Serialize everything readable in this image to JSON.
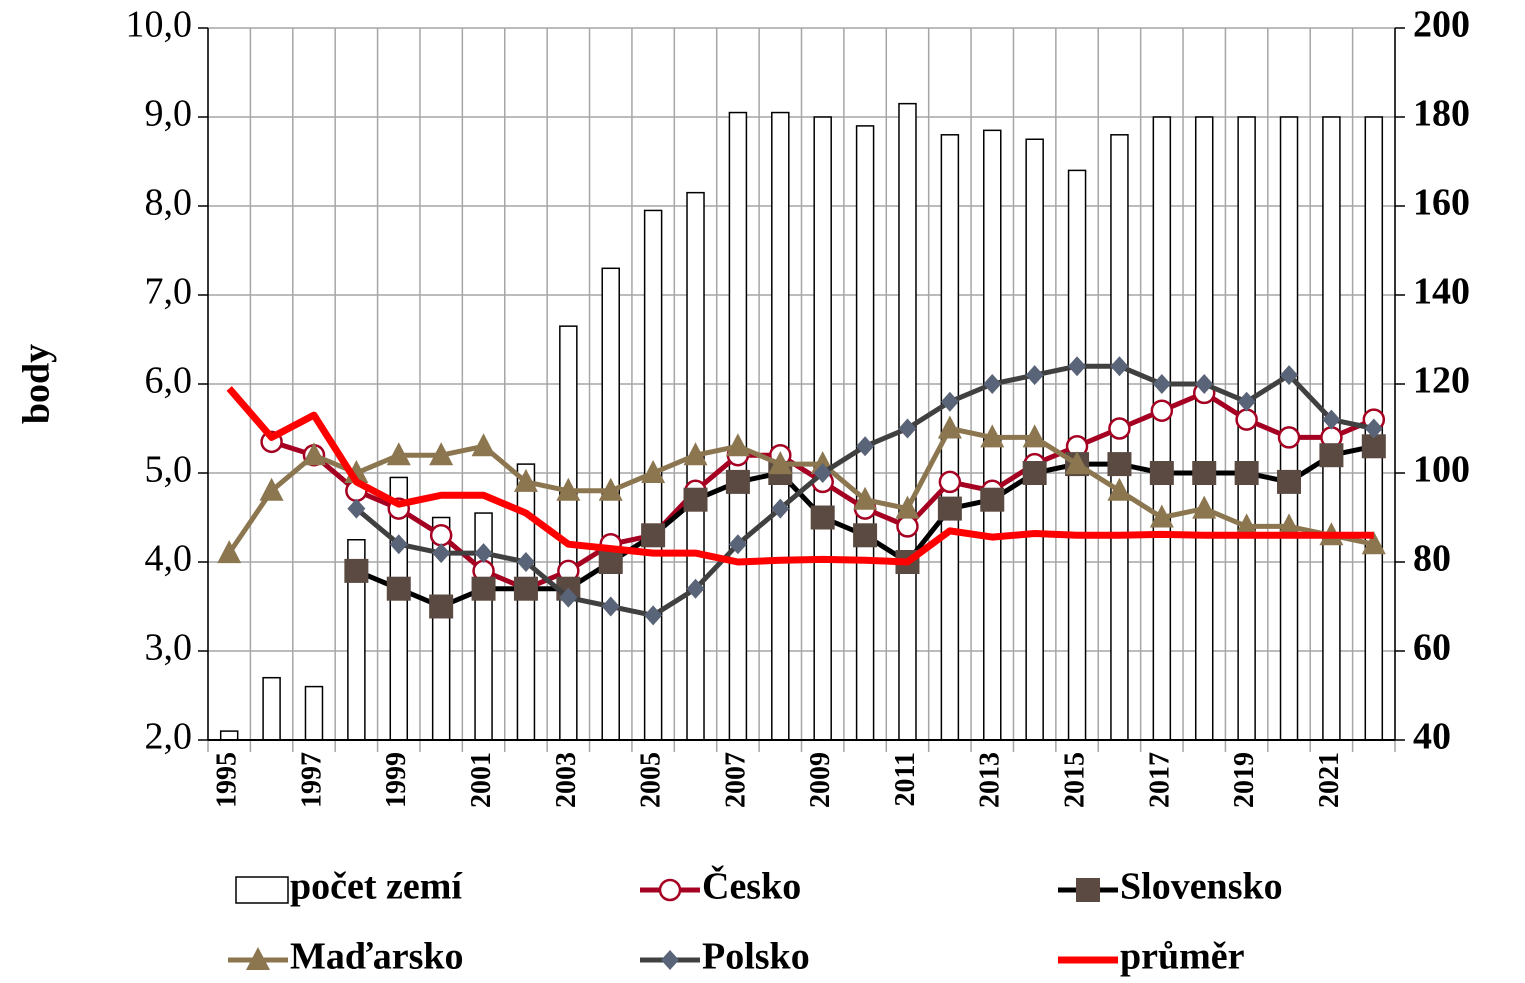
{
  "chart_data": {
    "type": "combo",
    "ylabel": "body",
    "categories": [
      "1995",
      null,
      "1997",
      null,
      "1999",
      null,
      "2001",
      null,
      "2003",
      null,
      "2005",
      null,
      "2007",
      null,
      "2009",
      null,
      "2011",
      null,
      "2013",
      null,
      "2015",
      null,
      "2017",
      null,
      "2019",
      null,
      "2021",
      null
    ],
    "ylim": [
      2,
      10
    ],
    "yticks": [
      {
        "value": 2,
        "label": "2,0"
      },
      {
        "value": 3,
        "label": "3,0"
      },
      {
        "value": 4,
        "label": "4,0"
      },
      {
        "value": 5,
        "label": "5,0"
      },
      {
        "value": 6,
        "label": "6,0"
      },
      {
        "value": 7,
        "label": "7,0"
      },
      {
        "value": 8,
        "label": "8,0"
      },
      {
        "value": 9,
        "label": "9,0"
      },
      {
        "value": 10,
        "label": "10,0"
      }
    ],
    "y2lim": [
      40,
      200
    ],
    "y2ticks": [
      40,
      60,
      80,
      100,
      120,
      140,
      160,
      180,
      200
    ],
    "grid": true,
    "legend": "bottom",
    "series": [
      {
        "name": "počet zemí",
        "type": "bar",
        "axis": "y2",
        "color": "#ffffff",
        "edge": "#000000",
        "values": [
          42,
          54,
          52,
          85,
          99,
          90,
          91,
          102,
          133,
          146,
          159,
          163,
          181,
          181,
          180,
          178,
          183,
          176,
          177,
          175,
          168,
          176,
          180,
          180,
          180,
          180,
          180,
          180
        ]
      },
      {
        "name": "Česko",
        "type": "line",
        "color": "#a50021",
        "marker": "circle",
        "values": [
          null,
          5.35,
          5.2,
          4.8,
          4.6,
          4.3,
          3.9,
          3.7,
          3.9,
          4.2,
          4.3,
          4.8,
          5.2,
          5.2,
          4.9,
          4.6,
          4.4,
          4.9,
          4.8,
          5.1,
          5.3,
          5.5,
          5.7,
          5.9,
          5.6,
          5.4,
          5.4,
          5.6
        ]
      },
      {
        "name": "Slovensko",
        "type": "line",
        "color": "#000000",
        "marker": "square",
        "marker_color": "#5b4a42",
        "values": [
          null,
          null,
          null,
          3.9,
          3.7,
          3.5,
          3.7,
          3.7,
          3.7,
          4.0,
          4.3,
          4.7,
          4.9,
          5.0,
          4.5,
          4.3,
          4.0,
          4.6,
          4.7,
          5.0,
          5.1,
          5.1,
          5.0,
          5.0,
          5.0,
          4.9,
          5.2,
          5.3
        ]
      },
      {
        "name": "Maďarsko",
        "type": "line",
        "color": "#8b7650",
        "marker": "triangle",
        "values": [
          4.1,
          4.8,
          5.2,
          5.0,
          5.2,
          5.2,
          5.3,
          4.9,
          4.8,
          4.8,
          5.0,
          5.2,
          5.3,
          5.1,
          5.1,
          4.7,
          4.6,
          5.5,
          5.4,
          5.4,
          5.1,
          4.8,
          4.5,
          4.6,
          4.4,
          4.4,
          4.3,
          4.2
        ]
      },
      {
        "name": "Polsko",
        "type": "line",
        "color": "#404040",
        "marker": "diamond",
        "marker_color": "#5a6478",
        "values": [
          null,
          null,
          null,
          4.6,
          4.2,
          4.1,
          4.1,
          4.0,
          3.6,
          3.5,
          3.4,
          3.7,
          4.2,
          4.6,
          5.0,
          5.3,
          5.5,
          5.8,
          6.0,
          6.1,
          6.2,
          6.2,
          6.0,
          6.0,
          5.8,
          6.1,
          5.6,
          5.5
        ]
      },
      {
        "name": "průměr",
        "type": "line",
        "color": "#ff0000",
        "marker": "none",
        "values": [
          5.95,
          5.4,
          5.65,
          4.9,
          4.65,
          4.75,
          4.75,
          4.55,
          4.2,
          4.15,
          4.1,
          4.1,
          4.0,
          4.02,
          4.03,
          4.02,
          4.0,
          4.35,
          4.28,
          4.32,
          4.3,
          4.3,
          4.31,
          4.3,
          4.3,
          4.3,
          4.3,
          4.3
        ]
      }
    ]
  }
}
